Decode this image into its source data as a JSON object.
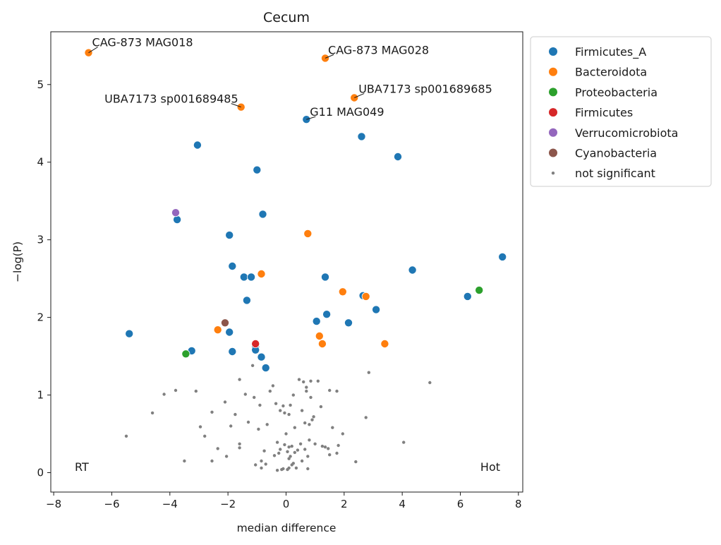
{
  "chart_data": {
    "type": "scatter",
    "title": "Cecum",
    "xlabel": "median difference",
    "ylabel": "−log(P)",
    "xlim": [
      -8.1,
      8.15
    ],
    "ylim": [
      -0.25,
      5.68
    ],
    "xticks": [
      -8,
      -6,
      -4,
      -2,
      0,
      2,
      4,
      6,
      8
    ],
    "xtick_labels": [
      "−8",
      "−6",
      "−4",
      "−2",
      "0",
      "2",
      "4",
      "6",
      "8"
    ],
    "yticks": [
      0,
      1,
      2,
      3,
      4,
      5
    ],
    "ytick_labels": [
      "0",
      "1",
      "2",
      "3",
      "4",
      "5"
    ],
    "grid": false,
    "legend_position": "outside-upper-right",
    "corner_labels": {
      "left": "RT",
      "right": "Hot"
    },
    "series": [
      {
        "name": "Firmicutes_A",
        "color": "#1f77b4",
        "points": [
          [
            0.7,
            4.55
          ],
          [
            2.6,
            4.33
          ],
          [
            -3.05,
            4.22
          ],
          [
            3.85,
            4.07
          ],
          [
            -1.0,
            3.9
          ],
          [
            -0.8,
            3.33
          ],
          [
            -3.75,
            3.26
          ],
          [
            -1.95,
            3.06
          ],
          [
            7.45,
            2.78
          ],
          [
            4.35,
            2.61
          ],
          [
            -1.85,
            2.66
          ],
          [
            -1.45,
            2.52
          ],
          [
            -1.2,
            2.52
          ],
          [
            1.35,
            2.52
          ],
          [
            2.65,
            2.28
          ],
          [
            -1.35,
            2.22
          ],
          [
            6.25,
            2.27
          ],
          [
            3.1,
            2.1
          ],
          [
            1.4,
            2.04
          ],
          [
            1.05,
            1.95
          ],
          [
            2.15,
            1.93
          ],
          [
            -5.4,
            1.79
          ],
          [
            -1.95,
            1.81
          ],
          [
            -3.25,
            1.57
          ],
          [
            -1.85,
            1.56
          ],
          [
            -1.05,
            1.62
          ],
          [
            -0.85,
            1.49
          ],
          [
            -0.7,
            1.35
          ],
          [
            -1.05,
            1.58
          ]
        ]
      },
      {
        "name": "Bacteroidota",
        "color": "#ff7f0e",
        "points": [
          [
            -6.8,
            5.41
          ],
          [
            1.35,
            5.34
          ],
          [
            2.35,
            4.83
          ],
          [
            -1.55,
            4.71
          ],
          [
            0.75,
            3.08
          ],
          [
            -0.85,
            2.56
          ],
          [
            1.95,
            2.33
          ],
          [
            2.75,
            2.27
          ],
          [
            -2.35,
            1.84
          ],
          [
            1.15,
            1.76
          ],
          [
            1.25,
            1.66
          ],
          [
            3.4,
            1.66
          ]
        ]
      },
      {
        "name": "Proteobacteria",
        "color": "#2ca02c",
        "points": [
          [
            6.65,
            2.35
          ],
          [
            -3.45,
            1.53
          ]
        ]
      },
      {
        "name": "Firmicutes",
        "color": "#d62728",
        "points": [
          [
            -1.05,
            1.66
          ]
        ]
      },
      {
        "name": "Verrucomicrobiota",
        "color": "#9467bd",
        "points": [
          [
            -3.8,
            3.35
          ]
        ]
      },
      {
        "name": "Cyanobacteria",
        "color": "#8c564b",
        "points": [
          [
            -2.1,
            1.93
          ]
        ]
      },
      {
        "name": "not significant",
        "color": "#808080",
        "marker": "small",
        "points": [
          [
            -5.5,
            0.47
          ],
          [
            -4.6,
            0.77
          ],
          [
            -4.2,
            1.01
          ],
          [
            -3.8,
            1.06
          ],
          [
            -3.5,
            0.15
          ],
          [
            -3.1,
            1.05
          ],
          [
            -2.95,
            0.59
          ],
          [
            -2.8,
            0.47
          ],
          [
            -2.55,
            0.78
          ],
          [
            -2.55,
            0.15
          ],
          [
            -2.35,
            0.31
          ],
          [
            -2.1,
            0.91
          ],
          [
            -2.05,
            0.21
          ],
          [
            -1.9,
            0.6
          ],
          [
            -1.75,
            0.75
          ],
          [
            -1.6,
            0.32
          ],
          [
            -1.6,
            0.37
          ],
          [
            -1.6,
            1.2
          ],
          [
            -1.4,
            1.01
          ],
          [
            -1.3,
            0.65
          ],
          [
            -1.15,
            1.38
          ],
          [
            -1.1,
            0.97
          ],
          [
            -1.05,
            0.1
          ],
          [
            -0.95,
            0.56
          ],
          [
            -0.9,
            0.87
          ],
          [
            -0.85,
            0.06
          ],
          [
            -0.85,
            0.15
          ],
          [
            -0.75,
            0.28
          ],
          [
            -0.7,
            0.11
          ],
          [
            -0.65,
            0.62
          ],
          [
            -0.55,
            1.05
          ],
          [
            -0.45,
            1.12
          ],
          [
            -0.4,
            0.22
          ],
          [
            -0.35,
            0.89
          ],
          [
            -0.3,
            0.39
          ],
          [
            -0.25,
            0.25
          ],
          [
            -0.2,
            0.3
          ],
          [
            -0.15,
            0.04
          ],
          [
            -0.1,
            0.05
          ],
          [
            -0.05,
            0.36
          ],
          [
            -0.05,
            0.77
          ],
          [
            0.0,
            0.5
          ],
          [
            -0.3,
            0.03
          ],
          [
            -0.2,
            0.8
          ],
          [
            -0.1,
            0.86
          ],
          [
            0.05,
            0.04
          ],
          [
            0.05,
            0.27
          ],
          [
            0.1,
            0.33
          ],
          [
            0.1,
            0.06
          ],
          [
            0.1,
            0.18
          ],
          [
            0.15,
            0.21
          ],
          [
            0.1,
            0.75
          ],
          [
            0.15,
            0.87
          ],
          [
            0.2,
            0.34
          ],
          [
            0.2,
            0.1
          ],
          [
            0.25,
            0.12
          ],
          [
            0.25,
            1.0
          ],
          [
            0.3,
            0.26
          ],
          [
            0.3,
            0.58
          ],
          [
            0.35,
            0.06
          ],
          [
            0.4,
            0.29
          ],
          [
            0.45,
            1.2
          ],
          [
            0.5,
            0.37
          ],
          [
            0.55,
            0.15
          ],
          [
            0.55,
            0.8
          ],
          [
            0.6,
            1.17
          ],
          [
            0.65,
            0.64
          ],
          [
            0.65,
            0.3
          ],
          [
            0.7,
            1.05
          ],
          [
            0.7,
            1.1
          ],
          [
            0.75,
            0.21
          ],
          [
            0.75,
            0.05
          ],
          [
            0.8,
            0.62
          ],
          [
            0.8,
            0.42
          ],
          [
            0.85,
            0.97
          ],
          [
            0.85,
            1.18
          ],
          [
            0.9,
            0.68
          ],
          [
            0.95,
            0.72
          ],
          [
            1.0,
            0.37
          ],
          [
            1.1,
            1.18
          ],
          [
            1.2,
            0.85
          ],
          [
            1.25,
            0.34
          ],
          [
            1.35,
            0.33
          ],
          [
            1.45,
            0.31
          ],
          [
            1.5,
            1.06
          ],
          [
            1.5,
            0.23
          ],
          [
            1.6,
            0.58
          ],
          [
            1.75,
            0.25
          ],
          [
            1.75,
            1.05
          ],
          [
            1.8,
            0.35
          ],
          [
            1.95,
            0.5
          ],
          [
            2.4,
            0.14
          ],
          [
            2.75,
            0.71
          ],
          [
            2.85,
            1.29
          ],
          [
            4.05,
            0.39
          ],
          [
            4.95,
            1.16
          ]
        ]
      }
    ],
    "annotations": [
      {
        "text": "CAG-873 MAG018",
        "x": -6.8,
        "y": 5.41
      },
      {
        "text": "CAG-873 MAG028",
        "x": 1.35,
        "y": 5.34
      },
      {
        "text": "UBA7173 sp001689685",
        "x": 2.35,
        "y": 4.83
      },
      {
        "text": "UBA7173 sp001689485",
        "x": -1.55,
        "y": 4.71
      },
      {
        "text": "G11 MAG049",
        "x": 0.7,
        "y": 4.55
      }
    ]
  }
}
